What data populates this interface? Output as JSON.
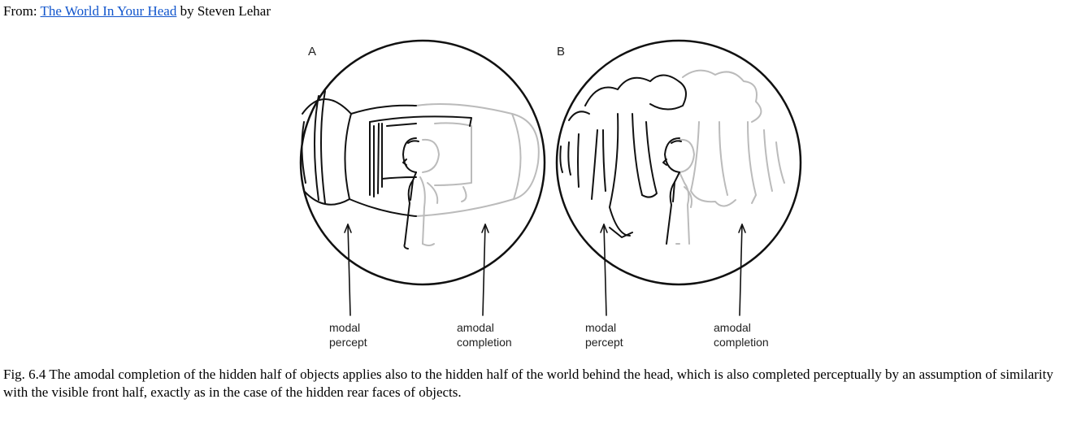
{
  "header": {
    "prefix": "From:",
    "link_text": "The World In Your Head",
    "suffix": "by Steven Lehar"
  },
  "figure": {
    "panel_a": {
      "label": "A",
      "modal_line1": "modal",
      "modal_line2": "percept",
      "amodal_line1": "amodal",
      "amodal_line2": "completion"
    },
    "panel_b": {
      "label": "B",
      "modal_line1": "modal",
      "modal_line2": "percept",
      "amodal_line1": "amodal",
      "amodal_line2": "completion"
    }
  },
  "caption": "Fig. 6.4 The amodal completion of the hidden half of objects applies also to the hidden half of the world behind the head, which is also completed perceptually by an assumption of similarity with the visible front half, exactly as in the case of the hidden rear faces of objects.",
  "colors": {
    "ink": "#111111",
    "faded_ink": "#bbbbbb",
    "link": "#1155cc"
  }
}
